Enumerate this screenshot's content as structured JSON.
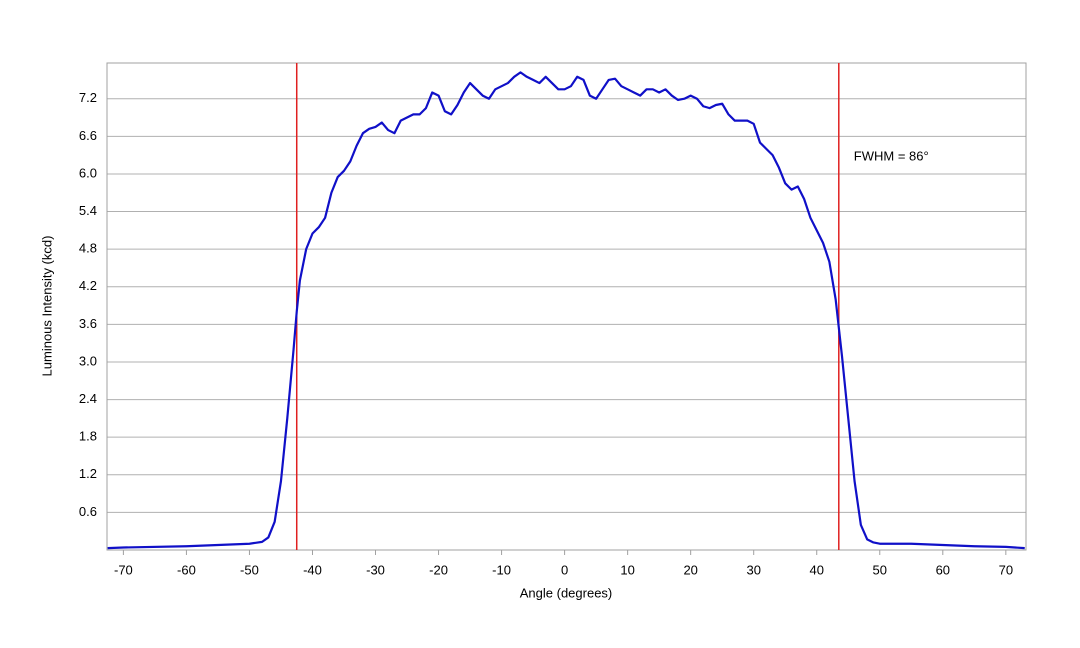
{
  "chart_data": {
    "type": "line",
    "x_label": "Angle (degrees)",
    "y_label": "Luminous Intensity (kcd)",
    "x": [
      -72.5,
      -70,
      -60,
      -50,
      -48,
      -47,
      -46,
      -45,
      -44,
      -43,
      -42.5,
      -42,
      -41,
      -40,
      -39,
      -38,
      -37,
      -36,
      -35,
      -34,
      -33,
      -32,
      -31,
      -30,
      -29,
      -28,
      -27,
      -26,
      -25,
      -24,
      -23,
      -22,
      -21,
      -20,
      -19,
      -18,
      -17,
      -16,
      -15,
      -14,
      -13,
      -12,
      -11,
      -10,
      -9,
      -8,
      -7,
      -6,
      -5,
      -4,
      -3,
      -2,
      -1,
      0,
      1,
      2,
      3,
      4,
      5,
      6,
      7,
      8,
      9,
      10,
      11,
      12,
      13,
      14,
      15,
      16,
      17,
      18,
      19,
      20,
      21,
      22,
      23,
      24,
      25,
      26,
      27,
      28,
      29,
      30,
      31,
      32,
      33,
      34,
      35,
      36,
      37,
      38,
      39,
      40,
      41,
      42,
      43,
      44,
      45,
      46,
      47,
      48,
      49,
      50,
      55,
      60,
      65,
      70,
      73
    ],
    "series": [
      {
        "name": "Luminous Intensity",
        "color": "#1010c8",
        "values": [
          0.03,
          0.04,
          0.06,
          0.1,
          0.13,
          0.2,
          0.45,
          1.1,
          2.1,
          3.2,
          3.8,
          4.3,
          4.8,
          5.05,
          5.15,
          5.3,
          5.7,
          5.95,
          6.05,
          6.2,
          6.45,
          6.65,
          6.72,
          6.75,
          6.82,
          6.7,
          6.65,
          6.85,
          6.9,
          6.95,
          6.95,
          7.05,
          7.3,
          7.25,
          7.0,
          6.95,
          7.1,
          7.3,
          7.45,
          7.35,
          7.25,
          7.2,
          7.35,
          7.4,
          7.45,
          7.55,
          7.62,
          7.55,
          7.5,
          7.45,
          7.55,
          7.45,
          7.35,
          7.35,
          7.4,
          7.55,
          7.5,
          7.25,
          7.2,
          7.35,
          7.5,
          7.52,
          7.4,
          7.35,
          7.3,
          7.25,
          7.35,
          7.35,
          7.3,
          7.35,
          7.25,
          7.18,
          7.2,
          7.25,
          7.2,
          7.08,
          7.05,
          7.1,
          7.12,
          6.95,
          6.85,
          6.85,
          6.85,
          6.8,
          6.5,
          6.4,
          6.3,
          6.1,
          5.85,
          5.75,
          5.8,
          5.6,
          5.3,
          5.1,
          4.9,
          4.6,
          4.0,
          3.1,
          2.1,
          1.1,
          0.4,
          0.17,
          0.12,
          0.1,
          0.1,
          0.08,
          0.06,
          0.05,
          0.03
        ]
      }
    ],
    "vlines": [
      -42.5,
      43.5
    ],
    "vline_color": "#e02020",
    "annotation": "FWHM = 86°",
    "xlim": [
      -72.6,
      73.2
    ],
    "xticks": [
      -70,
      -60,
      -50,
      -40,
      -30,
      -20,
      -10,
      0,
      10,
      20,
      30,
      40,
      50,
      60,
      70
    ],
    "ylim": [
      0,
      7.77
    ],
    "yticks": [
      0.6,
      1.2,
      1.8,
      2.4,
      {
        "value": 3,
        "label": "3.0"
      },
      3.6,
      4.2,
      4.8,
      5.4,
      {
        "value": 6,
        "label": "6.0"
      },
      6.6,
      7.2
    ],
    "grid": true
  }
}
